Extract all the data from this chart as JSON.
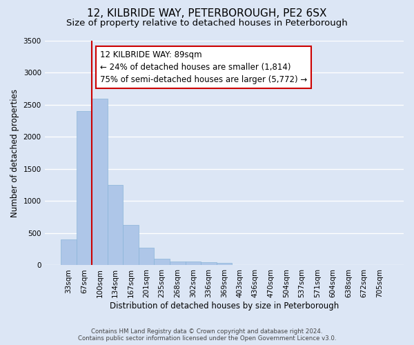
{
  "title": "12, KILBRIDE WAY, PETERBOROUGH, PE2 6SX",
  "subtitle": "Size of property relative to detached houses in Peterborough",
  "xlabel": "Distribution of detached houses by size in Peterborough",
  "ylabel": "Number of detached properties",
  "bar_values": [
    400,
    2400,
    2600,
    1250,
    630,
    275,
    100,
    60,
    55,
    50,
    35,
    0,
    0,
    0,
    0,
    0,
    0,
    0,
    0,
    0,
    0
  ],
  "bar_labels": [
    "33sqm",
    "67sqm",
    "100sqm",
    "134sqm",
    "167sqm",
    "201sqm",
    "235sqm",
    "268sqm",
    "302sqm",
    "336sqm",
    "369sqm",
    "403sqm",
    "436sqm",
    "470sqm",
    "504sqm",
    "537sqm",
    "571sqm",
    "604sqm",
    "638sqm",
    "672sqm",
    "705sqm"
  ],
  "bar_color": "#aec6e8",
  "bar_edge_color": "#8ab4d8",
  "vline_color": "#cc0000",
  "vline_x": 1.5,
  "ylim": [
    0,
    3500
  ],
  "yticks": [
    0,
    500,
    1000,
    1500,
    2000,
    2500,
    3000,
    3500
  ],
  "annotation_text": "12 KILBRIDE WAY: 89sqm\n← 24% of detached houses are smaller (1,814)\n75% of semi-detached houses are larger (5,772) →",
  "annotation_box_facecolor": "#ffffff",
  "annotation_box_edgecolor": "#cc0000",
  "footer_line1": "Contains HM Land Registry data © Crown copyright and database right 2024.",
  "footer_line2": "Contains public sector information licensed under the Open Government Licence v3.0.",
  "background_color": "#dce6f5",
  "plot_bg_color": "#dce6f5",
  "grid_color": "#ffffff",
  "title_fontsize": 11,
  "subtitle_fontsize": 9.5,
  "ylabel_fontsize": 8.5,
  "xlabel_fontsize": 8.5,
  "tick_fontsize": 7.5,
  "annotation_fontsize": 8.5,
  "footer_fontsize": 6.2
}
